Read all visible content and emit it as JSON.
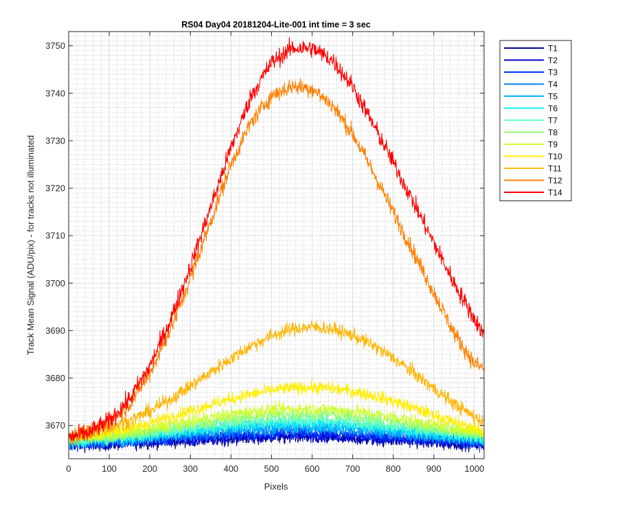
{
  "chart_data": {
    "type": "line",
    "title": "RS04 Day04 20181204-Lite-001 int time = 3 sec",
    "xlabel": "Pixels",
    "ylabel": "Track Mean Signal (ADU/pix) - for tracks not illuminated",
    "xlim": [
      0,
      1024
    ],
    "ylim": [
      3663,
      3753
    ],
    "xticks": [
      0,
      100,
      200,
      300,
      400,
      500,
      600,
      700,
      800,
      900,
      1000
    ],
    "yticks": [
      3670,
      3680,
      3690,
      3700,
      3710,
      3720,
      3730,
      3740,
      3750
    ],
    "grid": "major and minor",
    "legend_position": "outside-top-right",
    "noise_note": "curves are noisy; values are the smoothed profile read from the plot",
    "x": [
      0,
      50,
      100,
      150,
      200,
      250,
      300,
      350,
      400,
      450,
      500,
      550,
      600,
      650,
      700,
      750,
      800,
      850,
      900,
      950,
      1000,
      1024
    ],
    "series": [
      {
        "name": "T1",
        "color": "#00008f",
        "noise": 1.2,
        "values": [
          3666,
          3666,
          3666,
          3666.2,
          3666.4,
          3666.6,
          3666.8,
          3667,
          3667.2,
          3667.4,
          3667.5,
          3667.6,
          3667.6,
          3667.5,
          3667.3,
          3667.1,
          3666.9,
          3666.7,
          3666.4,
          3666.2,
          3666,
          3666
        ]
      },
      {
        "name": "T2",
        "color": "#0000c8",
        "noise": 1.2,
        "values": [
          3666.1,
          3666.1,
          3666.2,
          3666.4,
          3666.6,
          3666.8,
          3667,
          3667.2,
          3667.4,
          3667.6,
          3667.7,
          3667.8,
          3667.8,
          3667.7,
          3667.5,
          3667.3,
          3667.1,
          3666.9,
          3666.6,
          3666.4,
          3666.2,
          3666.1
        ]
      },
      {
        "name": "T3",
        "color": "#0030ff",
        "noise": 1.2,
        "values": [
          3666.3,
          3666.3,
          3666.4,
          3666.6,
          3666.9,
          3667.1,
          3667.4,
          3667.6,
          3667.9,
          3668.1,
          3668.2,
          3668.3,
          3668.3,
          3668.2,
          3668,
          3667.8,
          3667.5,
          3667.2,
          3666.9,
          3666.6,
          3666.4,
          3666.3
        ]
      },
      {
        "name": "T4",
        "color": "#0080ff",
        "noise": 1.2,
        "values": [
          3666.5,
          3666.6,
          3666.7,
          3667,
          3667.3,
          3667.6,
          3668,
          3668.3,
          3668.6,
          3668.9,
          3669.1,
          3669.2,
          3669.2,
          3669.1,
          3668.9,
          3668.6,
          3668.3,
          3667.9,
          3667.5,
          3667.1,
          3666.8,
          3666.7
        ]
      },
      {
        "name": "T5",
        "color": "#00b4ff",
        "noise": 1.2,
        "values": [
          3666.6,
          3666.7,
          3666.9,
          3667.2,
          3667.6,
          3668,
          3668.4,
          3668.8,
          3669.2,
          3669.5,
          3669.7,
          3669.8,
          3669.8,
          3669.7,
          3669.5,
          3669.2,
          3668.8,
          3668.4,
          3667.9,
          3667.4,
          3667,
          3666.9
        ]
      },
      {
        "name": "T6",
        "color": "#10f0f0",
        "noise": 1.2,
        "values": [
          3666.8,
          3666.9,
          3667.1,
          3667.5,
          3667.9,
          3668.4,
          3668.9,
          3669.4,
          3669.8,
          3670.1,
          3670.4,
          3670.5,
          3670.5,
          3670.4,
          3670.1,
          3669.8,
          3669.3,
          3668.8,
          3668.3,
          3667.8,
          3667.3,
          3667.1
        ]
      },
      {
        "name": "T7",
        "color": "#60ffc0",
        "noise": 1.2,
        "values": [
          3667,
          3667.1,
          3667.4,
          3667.8,
          3668.3,
          3668.9,
          3669.5,
          3670,
          3670.5,
          3670.9,
          3671.2,
          3671.3,
          3671.3,
          3671.2,
          3670.9,
          3670.5,
          3670,
          3669.4,
          3668.8,
          3668.2,
          3667.7,
          3667.5
        ]
      },
      {
        "name": "T8",
        "color": "#90ff70",
        "noise": 1.2,
        "values": [
          3667.2,
          3667.4,
          3667.7,
          3668.2,
          3668.8,
          3669.5,
          3670.2,
          3670.8,
          3671.4,
          3671.9,
          3672.2,
          3672.4,
          3672.4,
          3672.3,
          3672,
          3671.5,
          3670.9,
          3670.2,
          3669.5,
          3668.8,
          3668.2,
          3667.9
        ]
      },
      {
        "name": "T9",
        "color": "#d0ff30",
        "noise": 1.2,
        "values": [
          3667.4,
          3667.6,
          3668,
          3668.6,
          3669.3,
          3670.1,
          3670.9,
          3671.7,
          3672.4,
          3672.9,
          3673.3,
          3673.5,
          3673.5,
          3673.4,
          3673,
          3672.5,
          3671.8,
          3671,
          3670.2,
          3669.4,
          3668.7,
          3668.4
        ]
      },
      {
        "name": "T10",
        "color": "#ffee00",
        "noise": 1.2,
        "values": [
          3667.6,
          3667.9,
          3668.5,
          3669.4,
          3670.5,
          3671.8,
          3673.1,
          3674.4,
          3675.6,
          3676.6,
          3677.4,
          3677.9,
          3678,
          3677.8,
          3677.2,
          3676.3,
          3675.1,
          3673.7,
          3672.2,
          3670.7,
          3669.3,
          3668.7
        ]
      },
      {
        "name": "T11",
        "color": "#ffb400",
        "noise": 1.3,
        "values": [
          3668,
          3668.5,
          3669.5,
          3671,
          3673,
          3675.5,
          3678.3,
          3681.2,
          3684.1,
          3686.8,
          3688.9,
          3690.3,
          3690.8,
          3690.3,
          3689,
          3686.9,
          3684.2,
          3681.1,
          3677.8,
          3674.6,
          3671.8,
          3670.8
        ]
      },
      {
        "name": "T12",
        "color": "#ff8000",
        "noise": 1.6,
        "values": [
          3667.5,
          3668.5,
          3670.5,
          3674.5,
          3681,
          3690,
          3701,
          3713,
          3725,
          3734,
          3739.5,
          3741.5,
          3741,
          3737.5,
          3731.5,
          3723.5,
          3715,
          3706.5,
          3698,
          3689.5,
          3683,
          3682
        ]
      },
      {
        "name": "T14",
        "color": "#ff0000",
        "noise": 1.7,
        "values": [
          3667.5,
          3668.5,
          3671,
          3675.5,
          3682.5,
          3692,
          3703.5,
          3716,
          3728.5,
          3739.5,
          3746.5,
          3749.5,
          3749.5,
          3747,
          3741.5,
          3733.5,
          3725.5,
          3717,
          3708.5,
          3700,
          3692.5,
          3689
        ]
      }
    ]
  }
}
